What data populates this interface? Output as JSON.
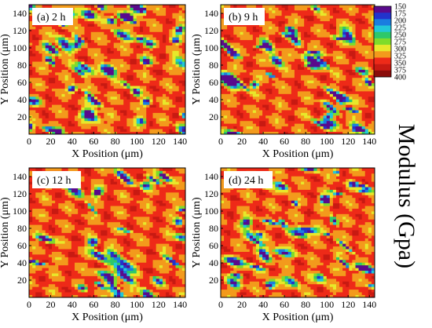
{
  "chart_data": [
    {
      "type": "heatmap",
      "panel_label": "(a) 2 h",
      "xlabel": "X Position (μm)",
      "ylabel": "Y Position (μm)",
      "xlim": [
        0,
        145
      ],
      "ylim": [
        0,
        150
      ],
      "xticks": [
        0,
        20,
        40,
        60,
        80,
        100,
        120,
        140
      ],
      "yticks": [
        20,
        40,
        60,
        80,
        100,
        120,
        140
      ],
      "seed": 11,
      "soft_fraction": 0.3
    },
    {
      "type": "heatmap",
      "panel_label": "(b) 9 h",
      "xlabel": "X Position (μm)",
      "ylabel": "Y Position (μm)",
      "xlim": [
        0,
        145
      ],
      "ylim": [
        0,
        150
      ],
      "xticks": [
        0,
        20,
        40,
        60,
        80,
        100,
        120,
        140
      ],
      "yticks": [
        20,
        40,
        60,
        80,
        100,
        120,
        140
      ],
      "seed": 23,
      "soft_fraction": 0.22
    },
    {
      "type": "heatmap",
      "panel_label": "(c) 12 h",
      "xlabel": "X Position (μm)",
      "ylabel": "Y Position (μm)",
      "xlim": [
        0,
        145
      ],
      "ylim": [
        0,
        150
      ],
      "xticks": [
        0,
        20,
        40,
        60,
        80,
        100,
        120,
        140
      ],
      "yticks": [
        20,
        40,
        60,
        80,
        100,
        120,
        140
      ],
      "seed": 37,
      "soft_fraction": 0.2
    },
    {
      "type": "heatmap",
      "panel_label": "(d) 24 h",
      "xlabel": "X Position (μm)",
      "ylabel": "Y Position (μm)",
      "xlim": [
        0,
        145
      ],
      "ylim": [
        0,
        150
      ],
      "xticks": [
        0,
        20,
        40,
        60,
        80,
        100,
        120,
        140
      ],
      "yticks": [
        20,
        40,
        60,
        80,
        100,
        120,
        140
      ],
      "seed": 53,
      "soft_fraction": 0.24
    }
  ],
  "colorbar": {
    "title": "Modulus (Gpa)",
    "levels": [
      150,
      175,
      200,
      225,
      250,
      275,
      300,
      325,
      350,
      375,
      400
    ],
    "colors": [
      "#5a0a8c",
      "#2233cc",
      "#1a7ee0",
      "#22c8d8",
      "#2ec86a",
      "#7fdc2a",
      "#e8e82a",
      "#f39a1c",
      "#ee2a18",
      "#c81a12",
      "#8a0c0a"
    ]
  }
}
